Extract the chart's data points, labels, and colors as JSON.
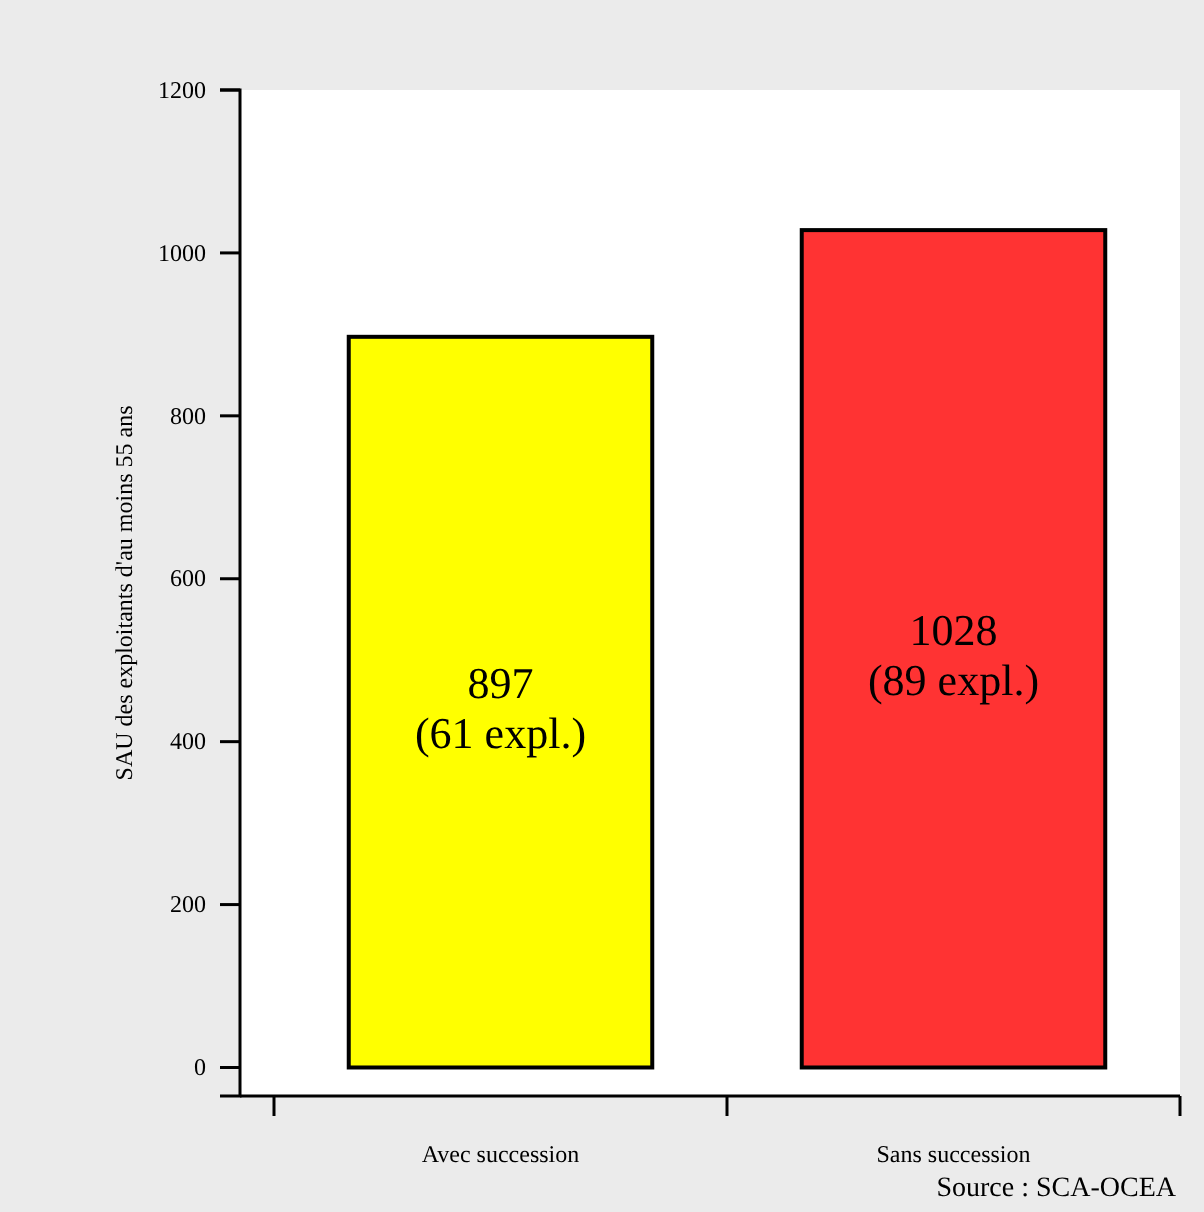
{
  "chart_data": {
    "type": "bar",
    "ylabel": "SAU des exploitants d'au moins 55 ans",
    "categories": [
      "Avec succession",
      "Sans succession"
    ],
    "values": [
      897,
      1028
    ],
    "colors": [
      "#ffff00",
      "#ff3333"
    ],
    "value_labels": [
      "897\n(61 expl.)",
      "1028\n(89 expl.)"
    ],
    "ylim": [
      -35,
      1200
    ],
    "yticks": [
      0,
      200,
      400,
      600,
      800,
      1000,
      1200
    ],
    "annotations": [
      "Source : SCA-OCEA"
    ]
  }
}
